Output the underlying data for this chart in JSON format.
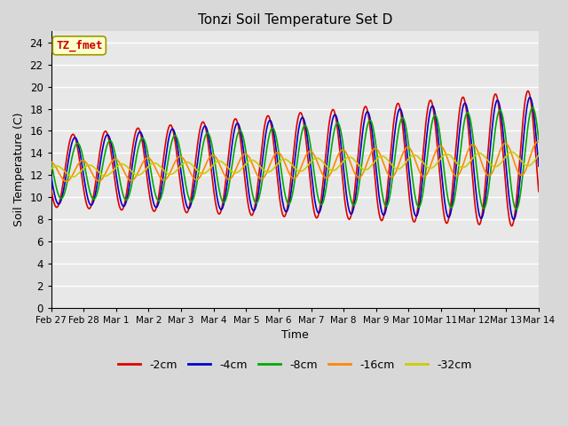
{
  "title": "Tonzi Soil Temperature Set D",
  "xlabel": "Time",
  "ylabel": "Soil Temperature (C)",
  "annotation": "TZ_fmet",
  "annotation_color": "#cc0000",
  "annotation_bg": "#ffffcc",
  "annotation_border": "#999900",
  "ylim": [
    0,
    25
  ],
  "yticks": [
    0,
    2,
    4,
    6,
    8,
    10,
    12,
    14,
    16,
    18,
    20,
    22,
    24
  ],
  "xtick_labels": [
    "Feb 27",
    "Feb 28",
    "Mar 1",
    "Mar 2",
    "Mar 3",
    "Mar 4",
    "Mar 5",
    "Mar 6",
    "Mar 7",
    "Mar 8",
    "Mar 9",
    "Mar 10",
    "Mar 11",
    "Mar 12",
    "Mar 13",
    "Mar 14"
  ],
  "series_labels": [
    "-2cm",
    "-4cm",
    "-8cm",
    "-16cm",
    "-32cm"
  ],
  "series_colors": [
    "#dd0000",
    "#0000cc",
    "#00aa00",
    "#ff8800",
    "#cccc00"
  ],
  "series_linewidths": [
    1.2,
    1.2,
    1.2,
    1.2,
    1.2
  ],
  "background_color": "#e8e8e8",
  "grid_color": "#ffffff",
  "figsize": [
    6.4,
    4.8
  ],
  "dpi": 100,
  "num_days": 15,
  "points_per_day": 96,
  "base_mean": 12.3,
  "mean_slope": 0.08,
  "series_params": [
    {
      "amp0": 3.2,
      "amp_slope": 0.2,
      "phase": 0.0,
      "label": "-2cm"
    },
    {
      "amp0": 2.9,
      "amp_slope": 0.18,
      "phase": 0.06,
      "label": "-4cm"
    },
    {
      "amp0": 2.4,
      "amp_slope": 0.15,
      "phase": 0.14,
      "label": "-8cm"
    },
    {
      "amp0": 0.9,
      "amp_slope": 0.04,
      "phase": 0.3,
      "label": "-16cm"
    },
    {
      "amp0": 0.5,
      "amp_slope": 0.01,
      "phase": 0.5,
      "label": "-32cm"
    }
  ]
}
